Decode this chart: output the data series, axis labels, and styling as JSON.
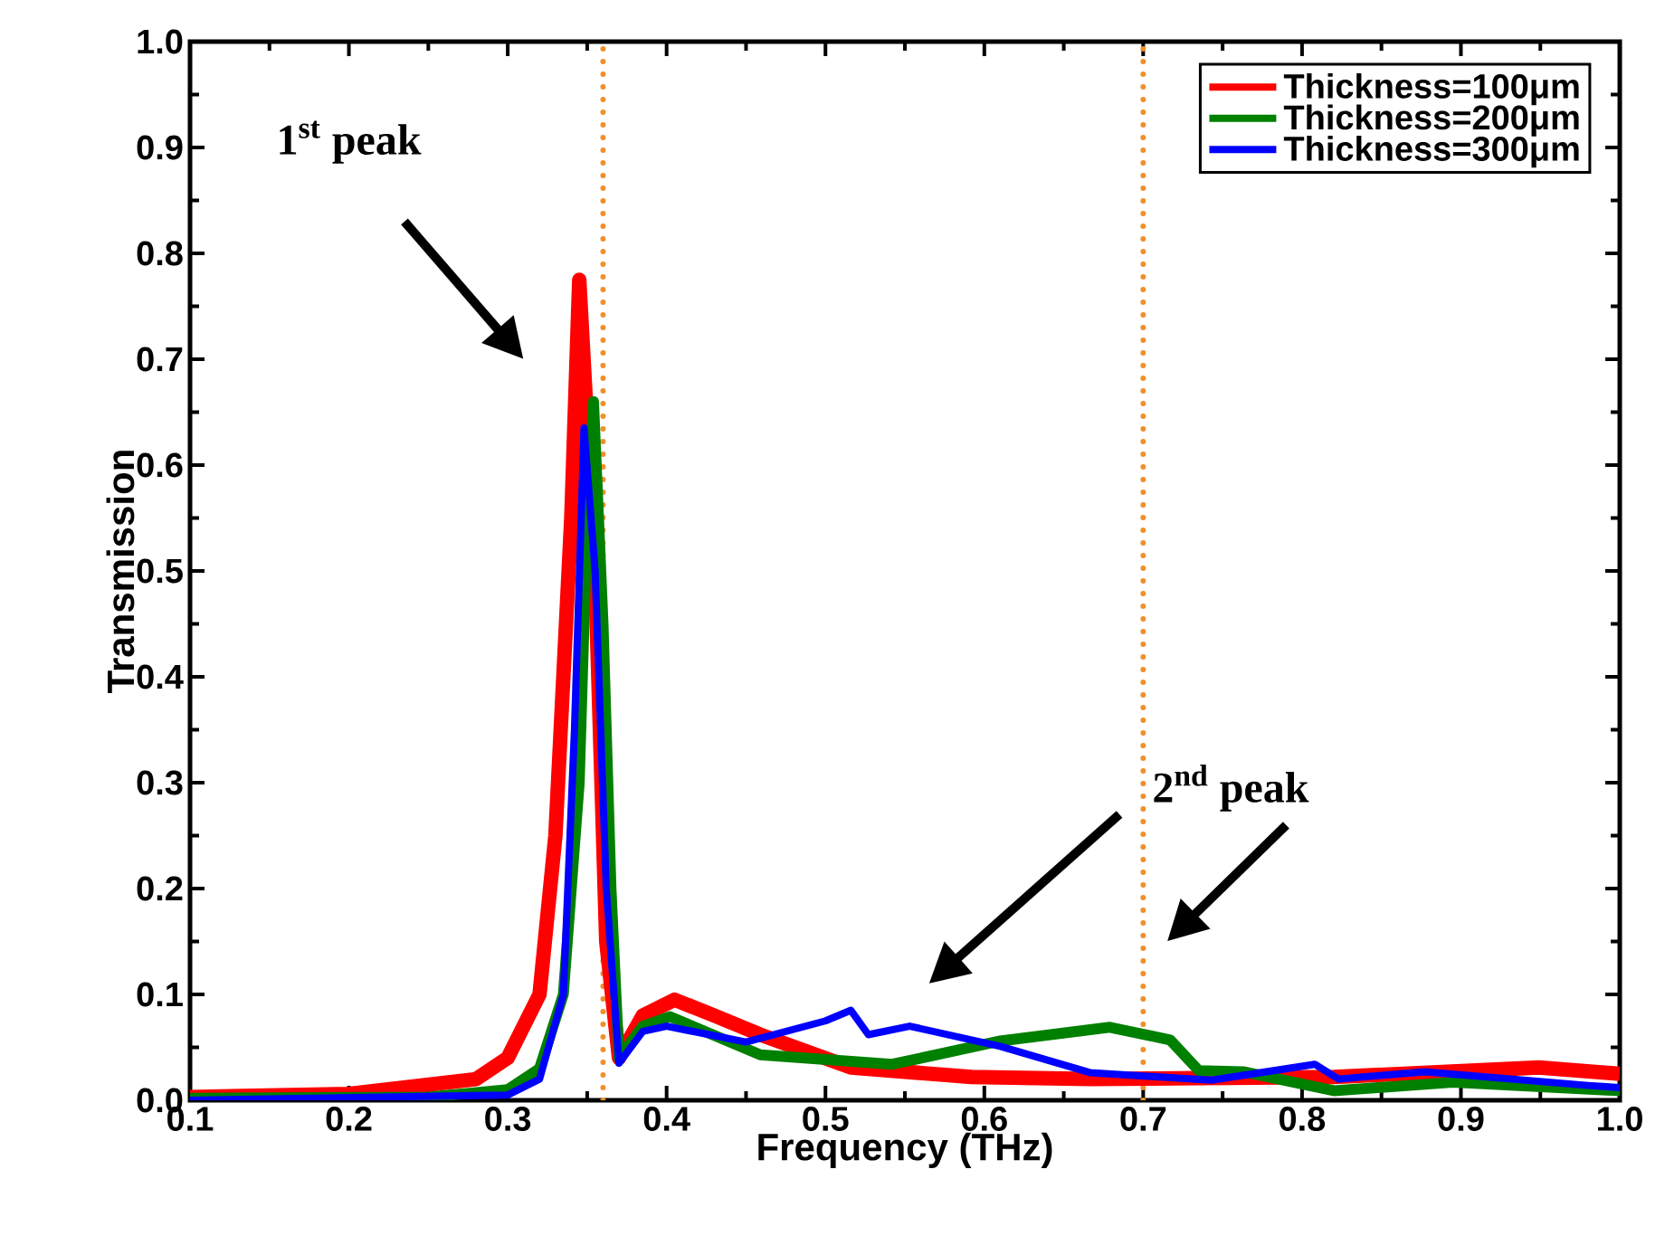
{
  "chart_data": {
    "type": "line",
    "xlabel": "Frequency (THz)",
    "ylabel": "Transmission",
    "xlim": [
      0.1,
      1.0
    ],
    "ylim": [
      0,
      1.0
    ],
    "xticks": [
      0.1,
      0.2,
      0.3,
      0.4,
      0.5,
      0.6,
      0.7,
      0.8,
      0.9,
      {
        "value": 1.0,
        "label": "1.0"
      }
    ],
    "yticks": [
      {
        "value": 0,
        "label": "0.0"
      },
      0.1,
      0.2,
      0.3,
      0.4,
      0.5,
      0.6,
      0.7,
      0.8,
      0.9,
      {
        "value": 1.0,
        "label": "1.0"
      }
    ],
    "grid": false,
    "legend": "top right",
    "marker": "none",
    "line_style": "solid",
    "series": [
      {
        "name": "Thickness=100μm",
        "color": "#ff0000",
        "x": [
          0.1,
          0.2,
          0.28,
          0.3,
          0.32,
          0.33,
          0.34,
          0.345,
          0.355,
          0.362,
          0.37,
          0.385,
          0.405,
          0.43,
          0.459,
          0.516,
          0.592,
          0.667,
          0.82,
          0.949,
          1.0
        ],
        "values": [
          0.003,
          0.006,
          0.02,
          0.04,
          0.1,
          0.25,
          0.55,
          0.775,
          0.5,
          0.15,
          0.04,
          0.08,
          0.095,
          0.08,
          0.062,
          0.031,
          0.022,
          0.02,
          0.022,
          0.031,
          0.025
        ]
      },
      {
        "name": "Thickness=200μm",
        "color": "#008000",
        "x": [
          0.1,
          0.25,
          0.3,
          0.32,
          0.335,
          0.345,
          0.35,
          0.354,
          0.36,
          0.365,
          0.37,
          0.385,
          0.402,
          0.459,
          0.542,
          0.61,
          0.679,
          0.717,
          0.735,
          0.763,
          0.82,
          0.895,
          1.0
        ],
        "values": [
          0.002,
          0.003,
          0.01,
          0.03,
          0.1,
          0.3,
          0.55,
          0.66,
          0.45,
          0.2,
          0.04,
          0.07,
          0.079,
          0.043,
          0.034,
          0.056,
          0.069,
          0.057,
          0.028,
          0.027,
          0.009,
          0.017,
          0.009
        ]
      },
      {
        "name": "Thickness=300μm",
        "color": "#0000ff",
        "x": [
          0.1,
          0.3,
          0.32,
          0.335,
          0.342,
          0.348,
          0.355,
          0.362,
          0.37,
          0.385,
          0.4,
          0.45,
          0.5,
          0.516,
          0.527,
          0.553,
          0.61,
          0.667,
          0.743,
          0.808,
          0.823,
          0.877,
          0.98,
          1.0
        ],
        "values": [
          0.0,
          0.005,
          0.02,
          0.1,
          0.35,
          0.635,
          0.5,
          0.2,
          0.035,
          0.065,
          0.07,
          0.055,
          0.075,
          0.085,
          0.062,
          0.07,
          0.051,
          0.026,
          0.019,
          0.034,
          0.02,
          0.027,
          0.014,
          0.012
        ]
      }
    ],
    "ref_lines": [
      {
        "axis": "x",
        "value": 0.36,
        "color": "#f0902a",
        "line_style": "dotted"
      },
      {
        "axis": "x",
        "value": 0.7,
        "color": "#f0902a",
        "line_style": "dotted"
      }
    ],
    "annotations": [
      "1$^{st}$ peak",
      "2$^{nd}$ peak"
    ]
  }
}
